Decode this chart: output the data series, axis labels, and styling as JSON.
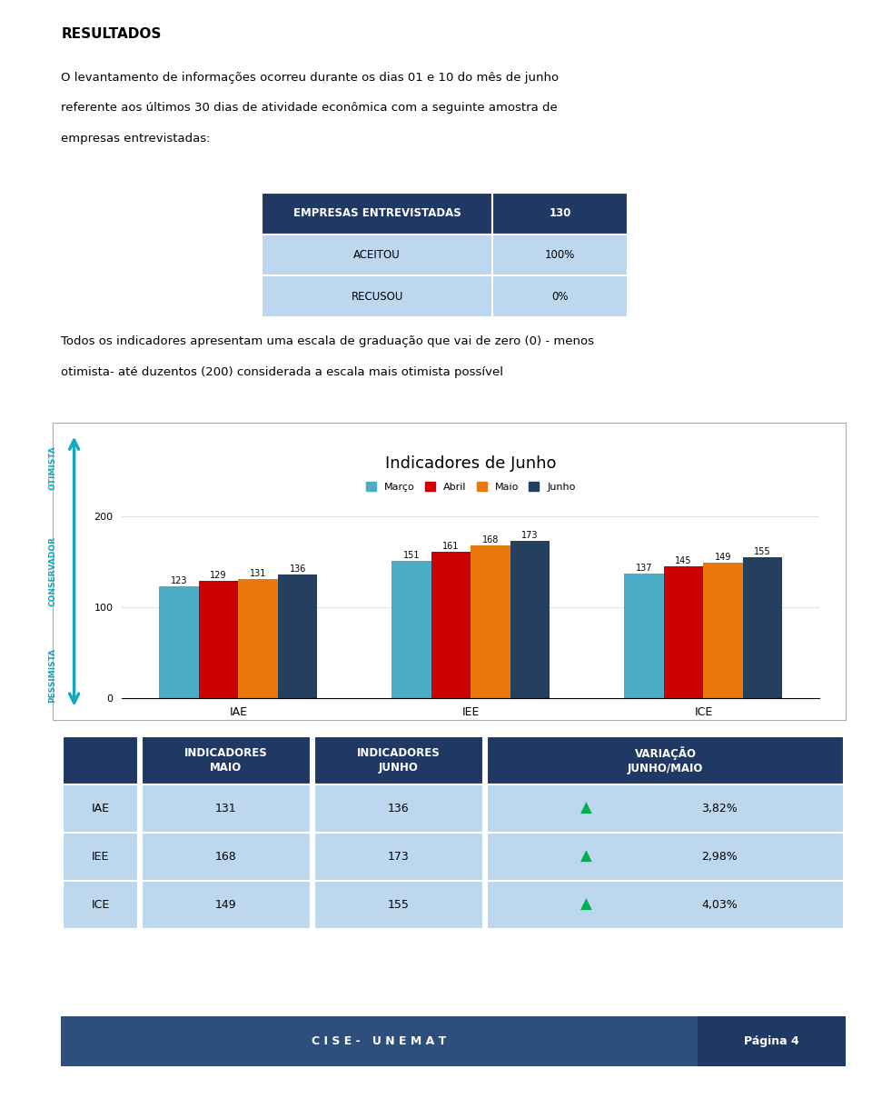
{
  "title": "RESULTADOS",
  "intro_line1": "O levantamento de informações ocorreu durante os dias 01 e 10 do mês de junho",
  "intro_line2": "referente aos últimos 30 dias de atividade econômica com a seguinte amostra de",
  "intro_line3": "empresas entrevistadas:",
  "table1_headers": [
    "EMPRESAS ENTREVISTADAS",
    "130"
  ],
  "table1_rows": [
    [
      "ACEITOU",
      "100%"
    ],
    [
      "RECUSOU",
      "0%"
    ]
  ],
  "scale_line1": "Todos os indicadores apresentam uma escala de graduação que vai de zero (0) - menos",
  "scale_line2": "otimista- até duzentos (200) considerada a escala mais otimista possível",
  "chart_title": "Indicadores de Junho",
  "legend_labels": [
    "Março",
    "Abril",
    "Maio",
    "Junho"
  ],
  "bar_colors": [
    "#4BACC6",
    "#CC0000",
    "#E8780A",
    "#243F60"
  ],
  "categories": [
    "IAE",
    "IEE",
    "ICE"
  ],
  "values": {
    "Março": [
      123,
      151,
      137
    ],
    "Abril": [
      129,
      161,
      145
    ],
    "Maio": [
      131,
      168,
      149
    ],
    "Junho": [
      136,
      173,
      155
    ]
  },
  "ylim": [
    0,
    200
  ],
  "yticks": [
    0,
    100,
    200
  ],
  "table2_header_bg": "#1F3864",
  "table2_row_bg": "#BDD7EE",
  "table2_header_labels": [
    "",
    "INDICADORES\nMAIO",
    "INDICADORES\nJUNHO",
    "VARIAÇÃO\nJUNHO/MAIO"
  ],
  "table2_rows": [
    [
      "IAE",
      "131",
      "136",
      "3,82%"
    ],
    [
      "IEE",
      "168",
      "173",
      "2,98%"
    ],
    [
      "ICE",
      "149",
      "155",
      "4,03%"
    ]
  ],
  "header_bg": "#1F3864",
  "header_text_color": "#FFFFFF",
  "row_bg": "#BDD7EE",
  "arrow_color": "#00B050",
  "footer_bg": "#1F3864",
  "footer_left_bg": "#2E4E7E",
  "footer_left": "C I S E -   U N E M A T",
  "footer_right": "Página 4",
  "left_arrow_color": "#17A8BF",
  "border_color": "#AAAAAA",
  "grid_color": "#E0E0E0"
}
